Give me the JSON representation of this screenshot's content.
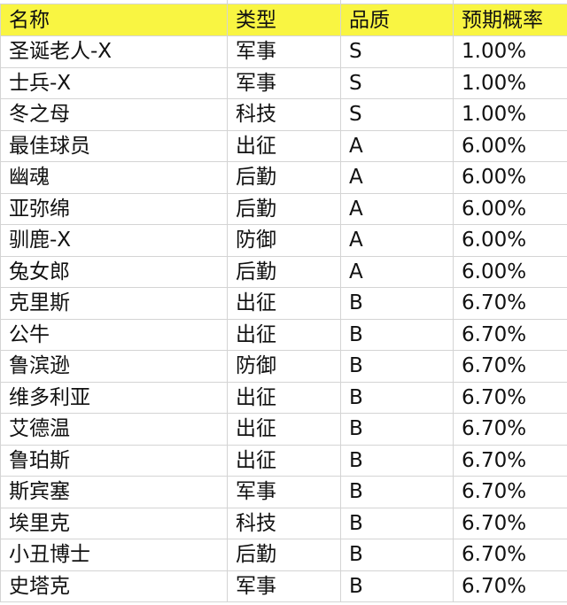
{
  "colors": {
    "header_bg": "#f9f542",
    "grid": "#d4d4d4"
  },
  "headers": [
    "名称",
    "类型",
    "品质",
    "预期概率"
  ],
  "rows": [
    [
      "圣诞老人-X",
      "军事",
      "S",
      "1.00%"
    ],
    [
      "士兵-X",
      "军事",
      "S",
      "1.00%"
    ],
    [
      "冬之母",
      "科技",
      "S",
      "1.00%"
    ],
    [
      "最佳球员",
      "出征",
      "A",
      "6.00%"
    ],
    [
      "幽魂",
      "后勤",
      "A",
      "6.00%"
    ],
    [
      "亚弥绵",
      "后勤",
      "A",
      "6.00%"
    ],
    [
      "驯鹿-X",
      "防御",
      "A",
      "6.00%"
    ],
    [
      "兔女郎",
      "后勤",
      "A",
      "6.00%"
    ],
    [
      "克里斯",
      "出征",
      "B",
      "6.70%"
    ],
    [
      "公牛",
      "出征",
      "B",
      "6.70%"
    ],
    [
      "鲁滨逊",
      "防御",
      "B",
      "6.70%"
    ],
    [
      "维多利亚",
      "出征",
      "B",
      "6.70%"
    ],
    [
      "艾德温",
      "出征",
      "B",
      "6.70%"
    ],
    [
      "鲁珀斯",
      "出征",
      "B",
      "6.70%"
    ],
    [
      "斯宾塞",
      "军事",
      "B",
      "6.70%"
    ],
    [
      "埃里克",
      "科技",
      "B",
      "6.70%"
    ],
    [
      "小丑博士",
      "后勤",
      "B",
      "6.70%"
    ],
    [
      "史塔克",
      "军事",
      "B",
      "6.70%"
    ]
  ]
}
